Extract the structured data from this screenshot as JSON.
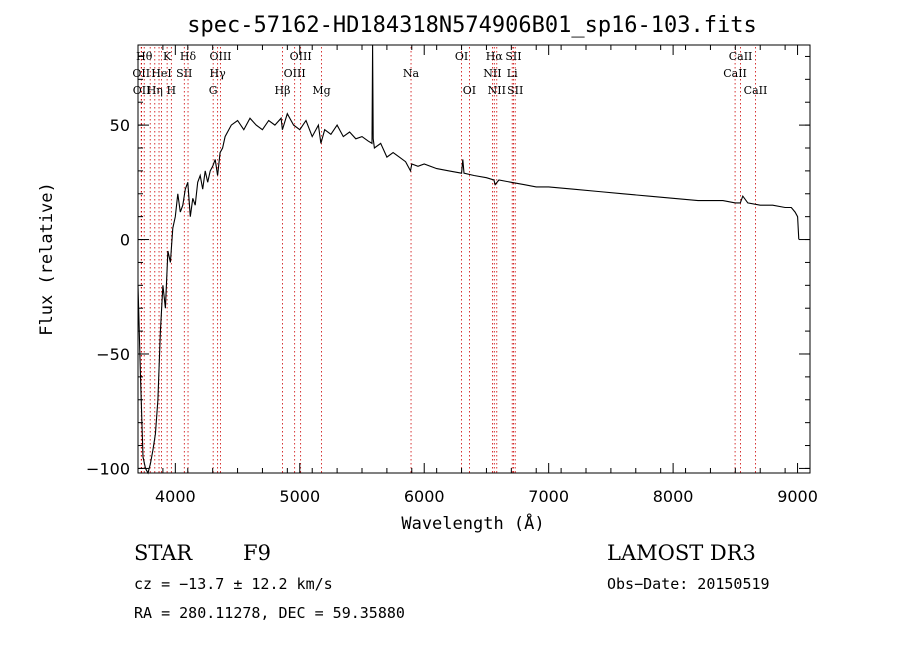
{
  "chart_data": {
    "type": "line",
    "title": "spec-57162-HD184318N574906B01_sp16-103.fits",
    "xlabel": "Wavelength (Å)",
    "ylabel": "Flux (relative)",
    "xlim": [
      3700,
      9100
    ],
    "ylim": [
      -102,
      85
    ],
    "xticks": [
      4000,
      5000,
      6000,
      7000,
      8000,
      9000
    ],
    "yticks": [
      -100,
      -50,
      0,
      50
    ],
    "grid": false,
    "line_color": "#000000",
    "marker_color": "#cc0000",
    "series": [
      {
        "values_x": [
          3700,
          3720,
          3740,
          3760,
          3780,
          3800,
          3820,
          3840,
          3860,
          3880,
          3900,
          3920,
          3940,
          3960,
          3980,
          4000,
          4020,
          4040,
          4060,
          4080,
          4100,
          4120,
          4140,
          4160,
          4180,
          4200,
          4220,
          4240,
          4260,
          4280,
          4300,
          4320,
          4340,
          4360,
          4380,
          4400,
          4450,
          4500,
          4550,
          4600,
          4650,
          4700,
          4750,
          4800,
          4850,
          4860,
          4900,
          4950,
          5000,
          5050,
          5100,
          5150,
          5170,
          5200,
          5250,
          5300,
          5350,
          5400,
          5450,
          5500,
          5550,
          5580,
          5585,
          5590,
          5600,
          5650,
          5700,
          5750,
          5800,
          5850,
          5890,
          5900,
          5950,
          6000,
          6100,
          6200,
          6300,
          6310,
          6320,
          6400,
          6500,
          6560,
          6570,
          6600,
          6700,
          6800,
          6900,
          7000,
          7200,
          7400,
          7600,
          7800,
          8000,
          8200,
          8400,
          8500,
          8540,
          8560,
          8600,
          8700,
          8800,
          8900,
          8950,
          8980,
          9000,
          9010
        ],
        "values_y": [
          -20,
          -60,
          -95,
          -100,
          -102,
          -98,
          -92,
          -85,
          -70,
          -40,
          -20,
          -30,
          -5,
          -10,
          5,
          10,
          20,
          12,
          15,
          22,
          25,
          10,
          18,
          15,
          25,
          28,
          22,
          30,
          25,
          30,
          32,
          35,
          28,
          38,
          40,
          45,
          50,
          52,
          48,
          53,
          50,
          48,
          52,
          50,
          53,
          48,
          55,
          50,
          48,
          52,
          45,
          50,
          42,
          48,
          46,
          50,
          45,
          47,
          44,
          45,
          43,
          42,
          85,
          44,
          40,
          42,
          36,
          38,
          36,
          34,
          30,
          33,
          32,
          33,
          31,
          30,
          29,
          35,
          29,
          28,
          27,
          26,
          24,
          26,
          25,
          24,
          23,
          23,
          22,
          21,
          20,
          19,
          18,
          17,
          17,
          16,
          16,
          19,
          16,
          15,
          15,
          14,
          14,
          12,
          10,
          0
        ]
      }
    ],
    "line_markers": [
      {
        "x": 3750,
        "label": "H&#952;",
        "row": 0
      },
      {
        "x": 3726,
        "label": "OII",
        "row": 1
      },
      {
        "x": 3729,
        "label": "OII",
        "row": 2
      },
      {
        "x": 3798,
        "label": "",
        "row": 0
      },
      {
        "x": 3835,
        "label": "H&#951;",
        "row": 2
      },
      {
        "x": 3869,
        "label": "",
        "row": 1
      },
      {
        "x": 3889,
        "label": "HeI",
        "row": 1
      },
      {
        "x": 3934,
        "label": "K",
        "row": 0
      },
      {
        "x": 3968,
        "label": "H",
        "row": 2
      },
      {
        "x": 4072,
        "label": "SII",
        "row": 1
      },
      {
        "x": 4102,
        "label": "H&#948;",
        "row": 0
      },
      {
        "x": 4304,
        "label": "G",
        "row": 2
      },
      {
        "x": 4340,
        "label": "H&#947;",
        "row": 1
      },
      {
        "x": 4363,
        "label": "OIII",
        "row": 0
      },
      {
        "x": 4861,
        "label": "H&#946;",
        "row": 2
      },
      {
        "x": 4959,
        "label": "OIII",
        "row": 1
      },
      {
        "x": 5007,
        "label": "OIII",
        "row": 0
      },
      {
        "x": 5175,
        "label": "Mg",
        "row": 2
      },
      {
        "x": 5894,
        "label": "Na",
        "row": 1
      },
      {
        "x": 6300,
        "label": "OI",
        "row": 0
      },
      {
        "x": 6363,
        "label": "OI",
        "row": 2
      },
      {
        "x": 6548,
        "label": "NII",
        "row": 1
      },
      {
        "x": 6563,
        "label": "H&#945;",
        "row": 0
      },
      {
        "x": 6583,
        "label": "NII",
        "row": 2
      },
      {
        "x": 6707,
        "label": "Li",
        "row": 1
      },
      {
        "x": 6717,
        "label": "SII",
        "row": 0
      },
      {
        "x": 6731,
        "label": "SII",
        "row": 2
      },
      {
        "x": 8498,
        "label": "CaII",
        "row": 1
      },
      {
        "x": 8542,
        "label": "CaII",
        "row": 0
      },
      {
        "x": 8662,
        "label": "CaII",
        "row": 2
      }
    ]
  },
  "info": {
    "object_type": "STAR",
    "subclass": "F9",
    "survey": "LAMOST DR3",
    "cz": "cz = −13.7 ± 12.2 km/s",
    "obs_date": "Obs−Date: 20150519",
    "coords": "RA = 280.11278, DEC =  59.35880"
  }
}
